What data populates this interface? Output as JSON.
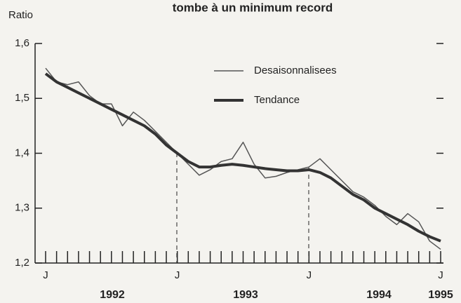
{
  "chart_data": {
    "type": "line",
    "title": "tombe à un minimum record",
    "y_label": "Ratio",
    "categories": [
      "J",
      null,
      null,
      null,
      null,
      null,
      null,
      null,
      null,
      null,
      null,
      null,
      "J",
      null,
      null,
      null,
      null,
      null,
      null,
      null,
      null,
      null,
      null,
      null,
      "J",
      null,
      null,
      null,
      null,
      null,
      null,
      null,
      null,
      null,
      null,
      null,
      "J"
    ],
    "year_labels": [
      "1992",
      "1993",
      "1994",
      "1995"
    ],
    "series": [
      {
        "name": "Desaisonnalisees",
        "color": "#555555",
        "values": [
          1.555,
          1.53,
          1.525,
          1.53,
          1.505,
          1.49,
          1.49,
          1.45,
          1.475,
          1.46,
          1.44,
          1.42,
          1.4,
          1.38,
          1.36,
          1.37,
          1.385,
          1.39,
          1.42,
          1.38,
          1.355,
          1.358,
          1.365,
          1.37,
          1.375,
          1.39,
          1.37,
          1.35,
          1.33,
          1.32,
          1.305,
          1.285,
          1.27,
          1.29,
          1.275,
          1.24,
          1.225
        ]
      },
      {
        "name": "Tendance",
        "color": "#333333",
        "values": [
          1.545,
          1.53,
          1.52,
          1.51,
          1.5,
          1.49,
          1.48,
          1.47,
          1.46,
          1.45,
          1.435,
          1.415,
          1.4,
          1.385,
          1.375,
          1.375,
          1.378,
          1.38,
          1.378,
          1.375,
          1.372,
          1.37,
          1.368,
          1.368,
          1.37,
          1.365,
          1.355,
          1.34,
          1.325,
          1.315,
          1.3,
          1.29,
          1.28,
          1.27,
          1.258,
          1.248,
          1.24
        ]
      }
    ],
    "ylim": [
      1.2,
      1.6
    ],
    "yticks": [
      {
        "value": 1.2,
        "label": "1,2"
      },
      {
        "value": 1.3,
        "label": "1,3"
      },
      {
        "value": 1.4,
        "label": "1,4"
      },
      {
        "value": 1.5,
        "label": "1,5"
      },
      {
        "value": 1.6,
        "label": "1,6"
      }
    ]
  }
}
